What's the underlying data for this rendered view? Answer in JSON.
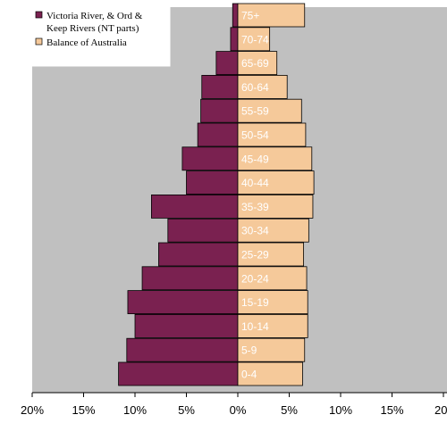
{
  "chart_data": {
    "type": "bar",
    "orientation": "horizontal",
    "layout": "population-pyramid",
    "categories": [
      "0-4",
      "5-9",
      "10-14",
      "15-19",
      "20-24",
      "25-29",
      "30-34",
      "35-39",
      "40-44",
      "45-49",
      "50-54",
      "55-59",
      "60-64",
      "65-69",
      "70-74",
      "75+"
    ],
    "series": [
      {
        "name": "Victoria River, & Ord & Keep Rivers (NT parts)",
        "side": "left",
        "color": "#7a2150",
        "values": [
          11.6,
          10.8,
          10.0,
          10.7,
          9.3,
          7.7,
          6.8,
          8.4,
          5.0,
          5.4,
          3.9,
          3.6,
          3.5,
          2.1,
          0.7,
          0.5
        ]
      },
      {
        "name": "Balance of Australia",
        "side": "right",
        "color": "#f5c99a",
        "values": [
          6.3,
          6.5,
          6.8,
          6.8,
          6.7,
          6.4,
          6.9,
          7.3,
          7.4,
          7.2,
          6.6,
          6.2,
          4.8,
          3.8,
          3.1,
          6.5
        ]
      }
    ],
    "xlim": [
      -20,
      20
    ],
    "xticks": [
      "20%",
      "15%",
      "10%",
      "5%",
      "0%",
      "5%",
      "10%",
      "15%",
      "20%"
    ],
    "legend_position": "top-left",
    "plot_background": "#c0c0c0",
    "title": "",
    "xlabel": "",
    "ylabel": ""
  }
}
